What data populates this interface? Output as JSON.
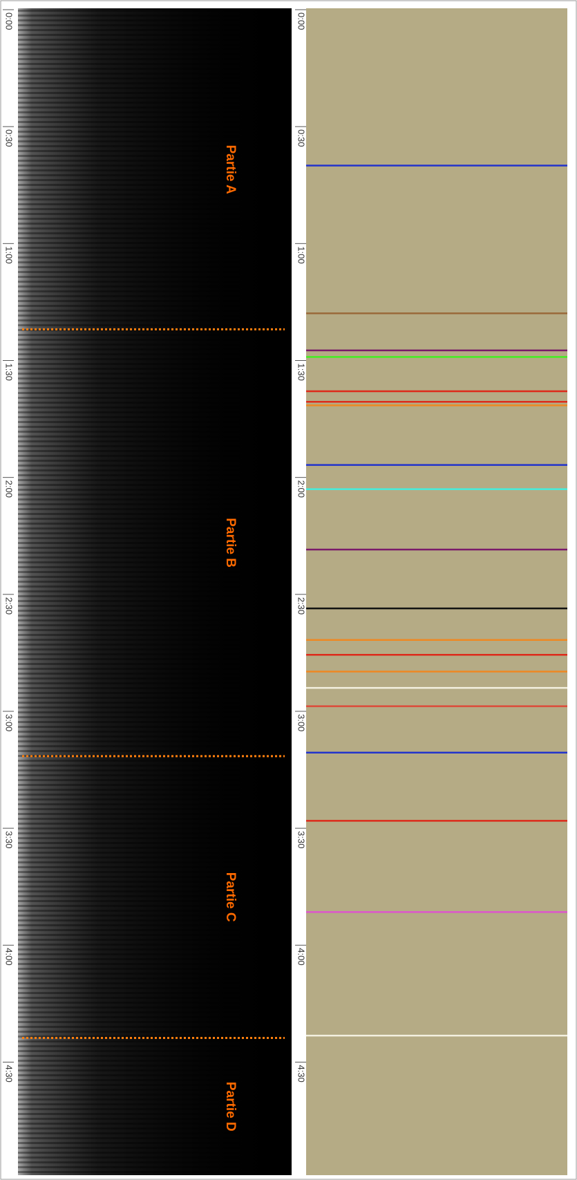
{
  "chart_data": {
    "type": "spectrogram-timeline",
    "ylim": [
      0,
      299
    ],
    "yticks": [
      {
        "value": 0,
        "label": "0:00"
      },
      {
        "value": 30,
        "label": "0:30"
      },
      {
        "value": 60,
        "label": "1:00"
      },
      {
        "value": 90,
        "label": "1:30"
      },
      {
        "value": 120,
        "label": "2:00"
      },
      {
        "value": 150,
        "label": "2:30"
      },
      {
        "value": 180,
        "label": "3:00"
      },
      {
        "value": 210,
        "label": "3:30"
      },
      {
        "value": 240,
        "label": "4:00"
      },
      {
        "value": 270,
        "label": "4:30"
      }
    ],
    "boundaries": [
      82,
      191.5,
      263.8
    ],
    "boundary_color": "#ff7f0e",
    "section_labels": [
      "Partie A",
      "Partie B",
      "Partie C",
      "Partie D"
    ],
    "events": {
      "values": [
        40,
        77.9,
        87.4,
        89.1,
        97.9,
        100.6,
        101.5,
        116.8,
        123,
        138.5,
        153.6,
        161.7,
        165.5,
        169.8,
        174,
        178.7,
        190.6,
        208.1,
        231.5,
        263.2
      ],
      "colors": [
        "#2233cc",
        "#9a6a3a",
        "#7a1a6a",
        "#44ee22",
        "#dd2a1a",
        "#dd2a1a",
        "#ee8822",
        "#2233cc",
        "#44eedd",
        "#7a1a6a",
        "#111111",
        "#ee8822",
        "#dd2a1a",
        "#ee8822",
        "#f4f0e0",
        "#dd4a3a",
        "#2233cc",
        "#dd2a1a",
        "#dd55cc",
        "#f4f0e0"
      ]
    }
  }
}
